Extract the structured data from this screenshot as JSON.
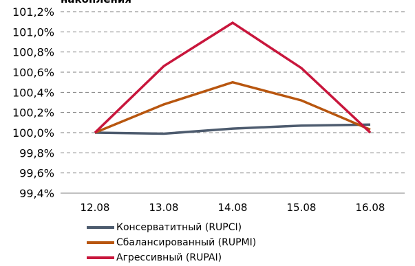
{
  "chart_data": {
    "type": "line",
    "title": "накопления",
    "xlabel": "",
    "ylabel": "",
    "categories": [
      "12.08",
      "13.08",
      "14.08",
      "15.08",
      "16.08"
    ],
    "y_ticks": [
      "99,4%",
      "99,6%",
      "99,8%",
      "100,0%",
      "100,2%",
      "100,4%",
      "100,6%",
      "100,8%",
      "101,0%",
      "101,2%"
    ],
    "ylim": [
      99.4,
      101.2
    ],
    "grid": true,
    "legend_position": "bottom-left",
    "series": [
      {
        "name": "Консерватитный (RUPCI)",
        "color": "#4d5b6e",
        "values": [
          100.0,
          99.99,
          100.04,
          100.07,
          100.08
        ]
      },
      {
        "name": "Сбалансированный (RUPMI)",
        "color": "#b8560f",
        "values": [
          100.0,
          100.28,
          100.5,
          100.32,
          100.03
        ]
      },
      {
        "name": "Агрессивный (RUPAI)",
        "color": "#c8163c",
        "values": [
          100.0,
          100.66,
          101.09,
          100.64,
          100.0
        ]
      }
    ]
  }
}
